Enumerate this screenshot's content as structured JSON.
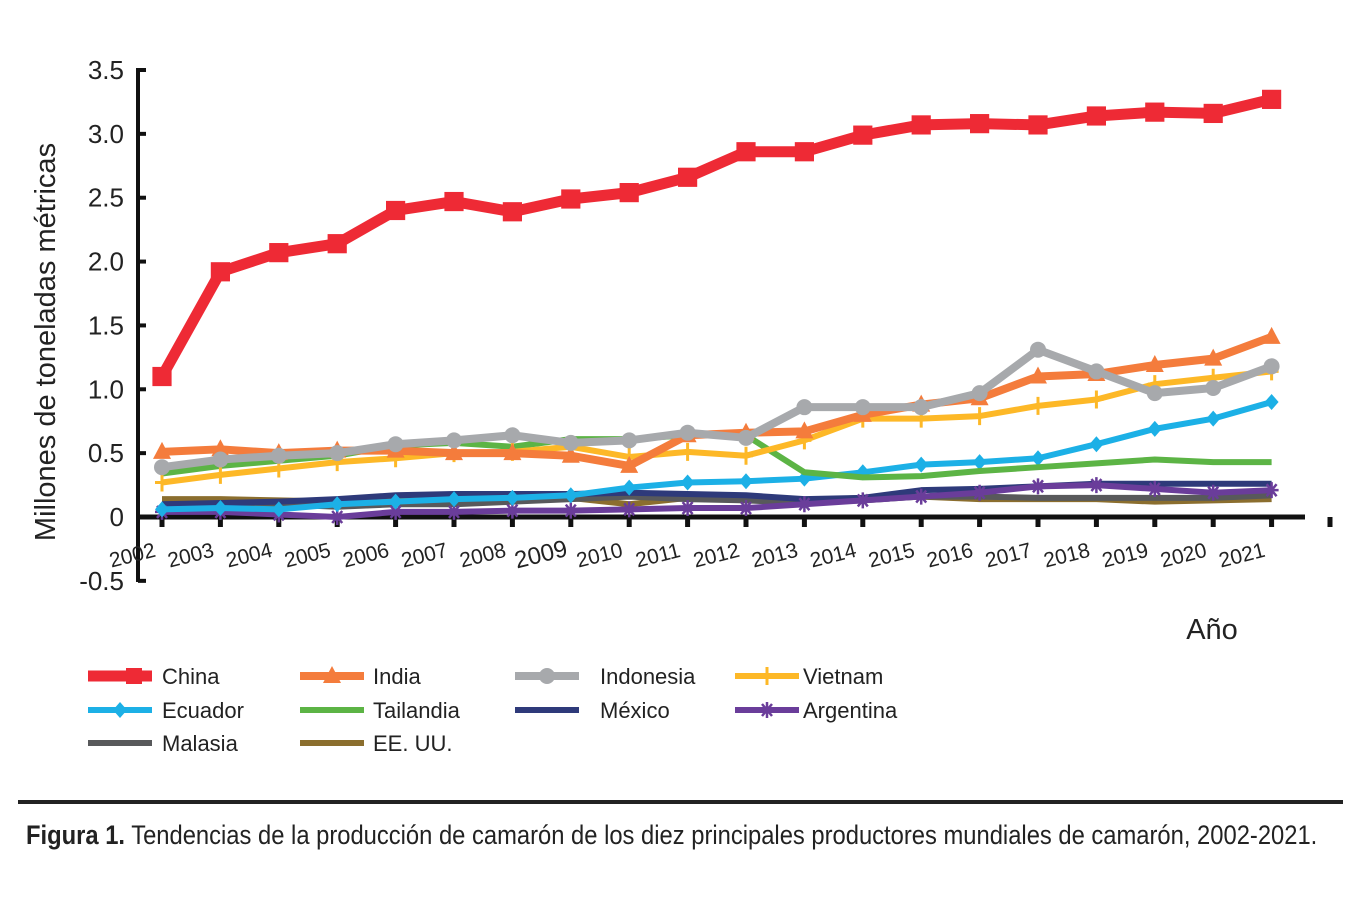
{
  "chart_data": {
    "type": "line",
    "title": "",
    "xlabel": "Año",
    "ylabel": "Millones de toneladas métricas",
    "ylim": [
      -0.5,
      3.5
    ],
    "yticks": [
      "3.5",
      "3.0",
      "2.5",
      "2.0",
      "1.5",
      "1.0",
      "0.5",
      "0",
      "-0.5"
    ],
    "ytick_values": [
      3.5,
      3.0,
      2.5,
      2.0,
      1.5,
      1.0,
      0.5,
      0,
      -0.5
    ],
    "x": [
      "2002",
      "2003",
      "2004",
      "2005",
      "2006",
      "2007",
      "2008",
      "2009",
      "2010",
      "2011",
      "2012",
      "2013",
      "2014",
      "2015",
      "2016",
      "2017",
      "2018",
      "2019",
      "2020",
      "2021"
    ],
    "legend_placement": "bottom",
    "grid": false,
    "series": [
      {
        "name": "China",
        "color": "#ee2a35",
        "marker": "square",
        "values": [
          1.1,
          1.92,
          2.07,
          2.14,
          2.4,
          2.47,
          2.39,
          2.49,
          2.54,
          2.66,
          2.86,
          2.86,
          2.99,
          3.07,
          3.08,
          3.07,
          3.14,
          3.17,
          3.16,
          3.27
        ]
      },
      {
        "name": "India",
        "color": "#f47c3c",
        "marker": "triangle",
        "values": [
          0.51,
          0.53,
          0.5,
          0.52,
          0.52,
          0.5,
          0.5,
          0.48,
          0.4,
          0.64,
          0.66,
          0.67,
          0.8,
          0.88,
          0.93,
          1.1,
          1.12,
          1.19,
          1.24,
          1.41
        ]
      },
      {
        "name": "Indonesia",
        "color": "#a7a9ac",
        "marker": "circle",
        "values": [
          0.39,
          0.45,
          0.48,
          0.5,
          0.57,
          0.6,
          0.64,
          0.58,
          0.6,
          0.66,
          0.62,
          0.86,
          0.86,
          0.86,
          0.97,
          1.31,
          1.14,
          0.97,
          1.01,
          1.18
        ]
      },
      {
        "name": "Vietnam",
        "color": "#fdb827",
        "marker": "plus",
        "values": [
          0.27,
          0.33,
          0.38,
          0.43,
          0.46,
          0.5,
          0.51,
          0.55,
          0.47,
          0.51,
          0.48,
          0.6,
          0.77,
          0.77,
          0.79,
          0.87,
          0.92,
          1.04,
          1.09,
          1.14
        ]
      },
      {
        "name": "Ecuador",
        "color": "#1cb0e6",
        "marker": "diamond",
        "values": [
          0.06,
          0.07,
          0.06,
          0.1,
          0.12,
          0.14,
          0.15,
          0.17,
          0.23,
          0.27,
          0.28,
          0.3,
          0.35,
          0.41,
          0.43,
          0.46,
          0.57,
          0.69,
          0.77,
          0.9
        ]
      },
      {
        "name": "Tailandia",
        "color": "#5cb445",
        "marker": "none",
        "values": [
          0.34,
          0.4,
          0.44,
          0.48,
          0.56,
          0.58,
          0.55,
          0.61,
          0.61,
          0.64,
          0.64,
          0.35,
          0.31,
          0.32,
          0.36,
          0.39,
          0.42,
          0.45,
          0.43,
          0.43
        ]
      },
      {
        "name": "México",
        "color": "#2e3a7a",
        "marker": "none",
        "values": [
          0.1,
          0.11,
          0.12,
          0.14,
          0.17,
          0.18,
          0.18,
          0.18,
          0.19,
          0.18,
          0.17,
          0.14,
          0.15,
          0.21,
          0.22,
          0.24,
          0.26,
          0.26,
          0.26,
          0.26
        ]
      },
      {
        "name": "Argentina",
        "color": "#6a3d9a",
        "marker": "star",
        "values": [
          0.04,
          0.04,
          0.02,
          0.0,
          0.04,
          0.04,
          0.05,
          0.05,
          0.06,
          0.07,
          0.07,
          0.1,
          0.13,
          0.16,
          0.19,
          0.24,
          0.25,
          0.22,
          0.19,
          0.21
        ]
      },
      {
        "name": "Malasia",
        "color": "#58595b",
        "marker": "none",
        "values": [
          0.1,
          0.1,
          0.1,
          0.08,
          0.1,
          0.1,
          0.12,
          0.14,
          0.16,
          0.14,
          0.13,
          0.11,
          0.13,
          0.16,
          0.16,
          0.15,
          0.15,
          0.15,
          0.15,
          0.17
        ]
      },
      {
        "name": "EE. UU.",
        "color": "#8b6e2e",
        "marker": "none",
        "values": [
          0.14,
          0.14,
          0.13,
          0.12,
          0.14,
          0.12,
          0.13,
          0.15,
          0.1,
          0.15,
          0.15,
          0.13,
          0.15,
          0.16,
          0.14,
          0.14,
          0.14,
          0.12,
          0.13,
          0.14
        ]
      }
    ]
  },
  "caption": {
    "label": "Figura 1.",
    "text": " Tendencias de la producción de camarón de los diez principales productores mundiales de camarón, 2002-2021."
  }
}
